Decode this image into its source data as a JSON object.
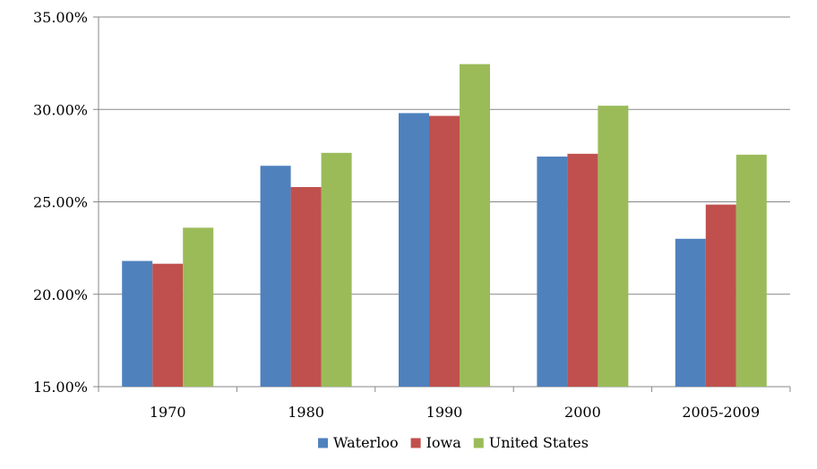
{
  "chart_data": {
    "type": "bar",
    "title": "",
    "xlabel": "",
    "ylabel": "",
    "categories": [
      "1970",
      "1980",
      "1990",
      "2000",
      "2005-2009"
    ],
    "series": [
      {
        "name": "Waterloo",
        "color": "#4F81BD",
        "values": [
          21.8,
          26.95,
          29.8,
          27.45,
          23.0
        ]
      },
      {
        "name": "Iowa",
        "color": "#C0504D",
        "values": [
          21.65,
          25.8,
          29.65,
          27.6,
          24.85
        ]
      },
      {
        "name": "United States",
        "color": "#9BBB59",
        "values": [
          23.6,
          27.65,
          32.45,
          30.2,
          27.55
        ]
      }
    ],
    "ylim": [
      15,
      35
    ],
    "yticks": [
      15,
      20,
      25,
      30,
      35
    ],
    "ytick_labels": [
      "15.00%",
      "20.00%",
      "25.00%",
      "30.00%",
      "35.00%"
    ],
    "grid": true,
    "legend_position": "bottom"
  }
}
